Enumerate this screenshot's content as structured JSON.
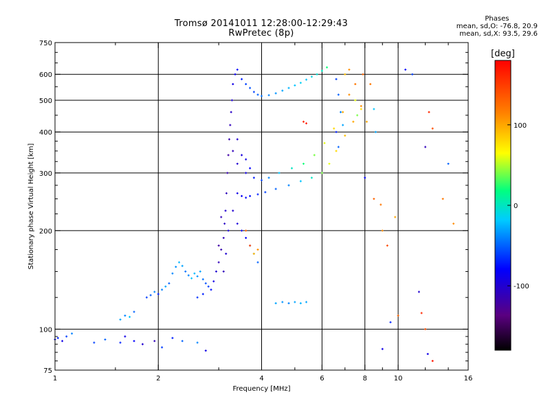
{
  "header": {
    "title": "Tromsø 20141011 12:28:00-12:29:43",
    "subtitle": "RwPretec (8p)",
    "stats_title": "Phases",
    "stats_line1": "mean, sd,O: -76.8, 20.9",
    "stats_line2": "mean, sd,X: 93.5, 29.6"
  },
  "colorbar": {
    "label": "[deg]",
    "ticks": [
      {
        "label": "100",
        "value": 100
      },
      {
        "label": "0",
        "value": 0
      },
      {
        "label": "-100",
        "value": -100
      }
    ],
    "range": [
      -180,
      180
    ]
  },
  "chart_data": {
    "type": "scatter",
    "title": "Tromsø 20141011 12:28:00-12:29:43",
    "subtitle": "RwPretec (8p)",
    "xlabel": "Frequency [MHz]",
    "ylabel": "Stationary phase Virtual Height [km]",
    "xscale": "log",
    "yscale": "log",
    "xlim": [
      1,
      16
    ],
    "ylim": [
      75,
      750
    ],
    "xticks": [
      {
        "label": "1",
        "value": 1
      },
      {
        "label": "2",
        "value": 2
      },
      {
        "label": "4",
        "value": 4
      },
      {
        "label": "6",
        "value": 6
      },
      {
        "label": "8",
        "value": 8
      },
      {
        "label": "10",
        "value": 10
      },
      {
        "label": "16",
        "value": 16
      }
    ],
    "yticks": [
      {
        "label": "75",
        "value": 75
      },
      {
        "label": "100",
        "value": 100
      },
      {
        "label": "200",
        "value": 200
      },
      {
        "label": "300",
        "value": 300
      },
      {
        "label": "400",
        "value": 400
      },
      {
        "label": "500",
        "value": 500
      },
      {
        "label": "600",
        "value": 600
      },
      {
        "label": "750",
        "value": 750
      }
    ],
    "gridlines_x": [
      2,
      4,
      6,
      8,
      10
    ],
    "gridlines_y": [
      100,
      200,
      300,
      400,
      500,
      600
    ],
    "grid": true,
    "color_variable": "phase [deg]",
    "colormap": "rainbow",
    "points": [
      [
        1.0,
        93,
        -80
      ],
      [
        1.02,
        94,
        -70
      ],
      [
        1.05,
        92,
        -90
      ],
      [
        1.08,
        95,
        -60
      ],
      [
        1.12,
        97,
        -40
      ],
      [
        1.3,
        91,
        -60
      ],
      [
        1.4,
        93,
        -50
      ],
      [
        1.55,
        91,
        -70
      ],
      [
        1.6,
        95,
        -90
      ],
      [
        1.7,
        92,
        -80
      ],
      [
        1.8,
        90,
        -100
      ],
      [
        1.95,
        92,
        -110
      ],
      [
        2.05,
        88,
        -60
      ],
      [
        2.2,
        94,
        -70
      ],
      [
        2.35,
        92,
        -50
      ],
      [
        2.6,
        91,
        -40
      ],
      [
        2.75,
        86,
        -90
      ],
      [
        1.55,
        107,
        -30
      ],
      [
        1.6,
        110,
        -40
      ],
      [
        1.65,
        109,
        -20
      ],
      [
        1.7,
        113,
        -50
      ],
      [
        1.85,
        125,
        -60
      ],
      [
        1.9,
        127,
        -50
      ],
      [
        1.95,
        130,
        -40
      ],
      [
        2.0,
        128,
        -70
      ],
      [
        2.05,
        132,
        -40
      ],
      [
        2.1,
        135,
        -30
      ],
      [
        2.15,
        138,
        -50
      ],
      [
        2.2,
        148,
        -40
      ],
      [
        2.25,
        155,
        -35
      ],
      [
        2.3,
        160,
        -25
      ],
      [
        2.35,
        156,
        -30
      ],
      [
        2.4,
        150,
        -45
      ],
      [
        2.45,
        146,
        -40
      ],
      [
        2.5,
        143,
        -20
      ],
      [
        2.55,
        148,
        -25
      ],
      [
        2.6,
        145,
        -35
      ],
      [
        2.65,
        150,
        -30
      ],
      [
        2.7,
        142,
        -45
      ],
      [
        2.75,
        138,
        -55
      ],
      [
        2.8,
        135,
        -60
      ],
      [
        2.7,
        128,
        -70
      ],
      [
        2.6,
        125,
        -65
      ],
      [
        2.85,
        132,
        -75
      ],
      [
        2.9,
        140,
        -90
      ],
      [
        2.95,
        150,
        -100
      ],
      [
        3.0,
        160,
        -110
      ],
      [
        3.05,
        175,
        -115
      ],
      [
        3.1,
        190,
        -110
      ],
      [
        3.12,
        210,
        -105
      ],
      [
        3.14,
        230,
        -100
      ],
      [
        3.16,
        260,
        -110
      ],
      [
        3.18,
        300,
        -115
      ],
      [
        3.2,
        340,
        -120
      ],
      [
        3.22,
        380,
        -115
      ],
      [
        3.24,
        420,
        -110
      ],
      [
        3.26,
        460,
        -105
      ],
      [
        3.28,
        500,
        -100
      ],
      [
        3.1,
        150,
        -110
      ],
      [
        3.15,
        170,
        -100
      ],
      [
        3.2,
        200,
        -95
      ],
      [
        3.0,
        180,
        -120
      ],
      [
        3.05,
        220,
        -110
      ],
      [
        3.3,
        560,
        -90
      ],
      [
        3.35,
        600,
        -85
      ],
      [
        3.4,
        620,
        -80
      ],
      [
        3.5,
        580,
        -70
      ],
      [
        3.6,
        560,
        -60
      ],
      [
        3.7,
        545,
        -55
      ],
      [
        3.8,
        530,
        -60
      ],
      [
        3.9,
        520,
        -50
      ],
      [
        4.0,
        515,
        -45
      ],
      [
        4.2,
        518,
        -40
      ],
      [
        4.4,
        525,
        -35
      ],
      [
        4.6,
        535,
        -30
      ],
      [
        4.8,
        545,
        -25
      ],
      [
        5.0,
        555,
        -20
      ],
      [
        5.2,
        565,
        -15
      ],
      [
        5.4,
        578,
        -20
      ],
      [
        5.6,
        590,
        -10
      ],
      [
        5.8,
        600,
        -5
      ],
      [
        6.0,
        615,
        0
      ],
      [
        6.2,
        630,
        20
      ],
      [
        3.4,
        260,
        -90
      ],
      [
        3.5,
        255,
        -85
      ],
      [
        3.6,
        252,
        -80
      ],
      [
        3.7,
        255,
        -75
      ],
      [
        3.9,
        258,
        -70
      ],
      [
        4.1,
        262,
        -60
      ],
      [
        4.4,
        268,
        -50
      ],
      [
        4.8,
        275,
        -40
      ],
      [
        5.2,
        283,
        -20
      ],
      [
        5.6,
        290,
        0
      ],
      [
        6.0,
        300,
        40
      ],
      [
        6.3,
        320,
        60
      ],
      [
        6.6,
        350,
        80
      ],
      [
        7.0,
        390,
        90
      ],
      [
        7.4,
        430,
        100
      ],
      [
        7.8,
        480,
        110
      ],
      [
        3.4,
        320,
        -100
      ],
      [
        3.6,
        300,
        -90
      ],
      [
        3.8,
        290,
        -70
      ],
      [
        4.0,
        285,
        -60
      ],
      [
        4.2,
        290,
        -40
      ],
      [
        4.5,
        300,
        -20
      ],
      [
        4.9,
        310,
        0
      ],
      [
        5.3,
        320,
        20
      ],
      [
        5.7,
        340,
        40
      ],
      [
        6.1,
        370,
        60
      ],
      [
        6.5,
        410,
        80
      ],
      [
        6.9,
        460,
        100
      ],
      [
        7.2,
        520,
        110
      ],
      [
        7.5,
        560,
        120
      ],
      [
        7.9,
        600,
        130
      ],
      [
        3.3,
        350,
        -110
      ],
      [
        3.4,
        380,
        -100
      ],
      [
        3.5,
        340,
        -95
      ],
      [
        3.6,
        330,
        -90
      ],
      [
        3.7,
        310,
        -80
      ],
      [
        3.3,
        230,
        -100
      ],
      [
        3.4,
        210,
        -95
      ],
      [
        3.5,
        200,
        -85
      ],
      [
        3.6,
        190,
        -80
      ],
      [
        3.7,
        180,
        -70
      ],
      [
        3.8,
        170,
        -60
      ],
      [
        3.9,
        160,
        -50
      ],
      [
        3.6,
        200,
        130
      ],
      [
        3.7,
        180,
        140
      ],
      [
        3.8,
        170,
        90
      ],
      [
        3.9,
        175,
        110
      ],
      [
        4.4,
        120,
        -30
      ],
      [
        4.6,
        121,
        -35
      ],
      [
        4.8,
        120,
        -40
      ],
      [
        5.0,
        121,
        -30
      ],
      [
        5.2,
        120,
        -25
      ],
      [
        5.4,
        121,
        -30
      ],
      [
        6.6,
        580,
        -60
      ],
      [
        6.7,
        520,
        -50
      ],
      [
        6.8,
        460,
        -40
      ],
      [
        6.9,
        420,
        -30
      ],
      [
        6.6,
        400,
        -70
      ],
      [
        6.7,
        360,
        -50
      ],
      [
        7.0,
        600,
        90
      ],
      [
        7.2,
        620,
        110
      ],
      [
        7.5,
        500,
        60
      ],
      [
        7.6,
        450,
        40
      ],
      [
        7.8,
        470,
        80
      ],
      [
        8.1,
        430,
        100
      ],
      [
        8.3,
        560,
        120
      ],
      [
        8.5,
        470,
        -20
      ],
      [
        8.6,
        400,
        -30
      ],
      [
        5.3,
        430,
        160
      ],
      [
        5.4,
        425,
        170
      ],
      [
        8.0,
        290,
        -80
      ],
      [
        8.5,
        250,
        130
      ],
      [
        8.9,
        240,
        120
      ],
      [
        9.0,
        200,
        110
      ],
      [
        9.3,
        180,
        140
      ],
      [
        9.8,
        220,
        100
      ],
      [
        9.5,
        105,
        -70
      ],
      [
        10.0,
        110,
        130
      ],
      [
        10.5,
        620,
        -80
      ],
      [
        11.0,
        600,
        -60
      ],
      [
        11.5,
        130,
        -100
      ],
      [
        11.7,
        112,
        160
      ],
      [
        12.0,
        100,
        140
      ],
      [
        12.3,
        460,
        160
      ],
      [
        12.0,
        360,
        -110
      ],
      [
        12.6,
        410,
        140
      ],
      [
        13.5,
        250,
        120
      ],
      [
        14.0,
        320,
        -50
      ],
      [
        14.5,
        210,
        110
      ],
      [
        12.2,
        84,
        -90
      ],
      [
        12.6,
        80,
        170
      ],
      [
        9.0,
        87,
        -90
      ]
    ]
  }
}
